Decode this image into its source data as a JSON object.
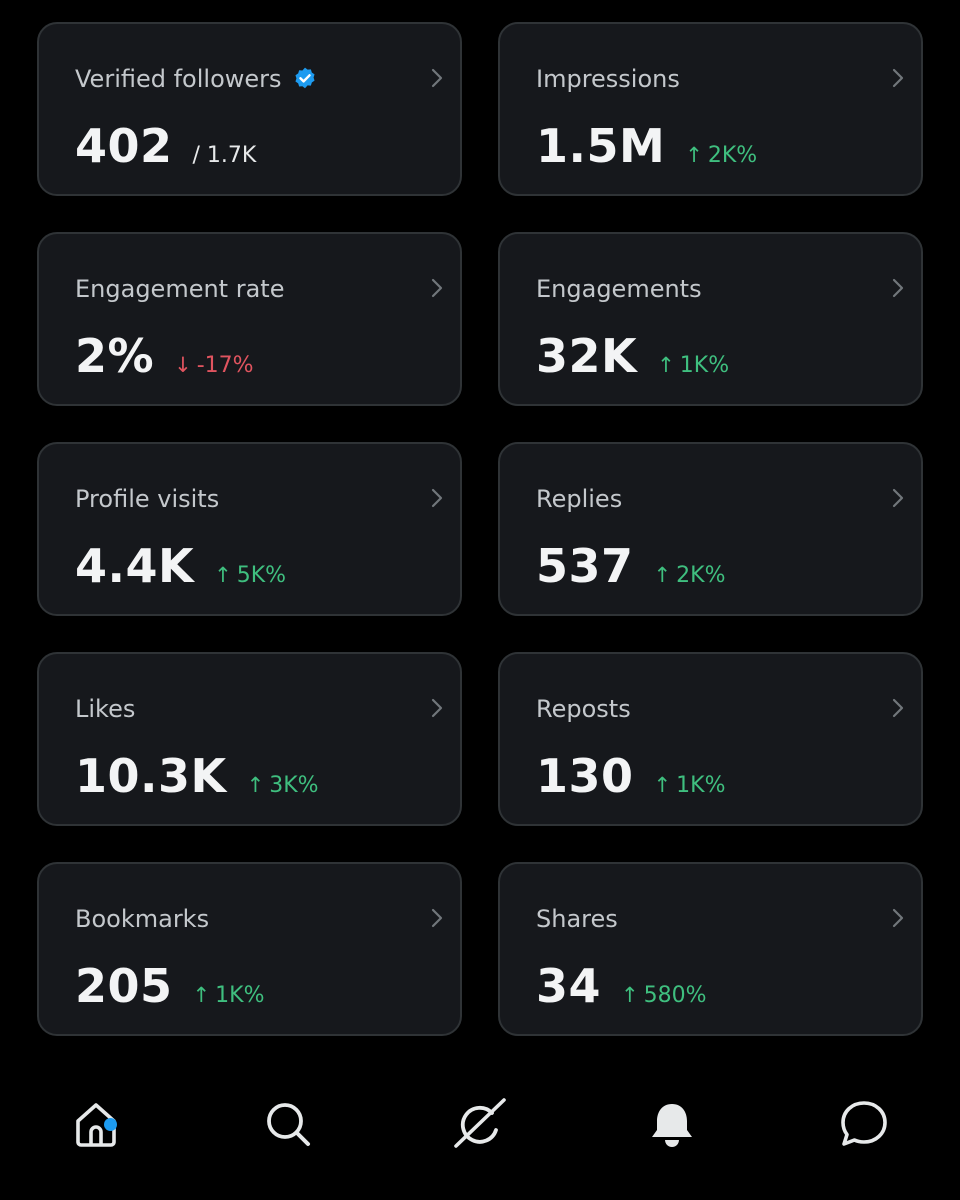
{
  "metrics": [
    {
      "label": "Verified followers",
      "value": "402",
      "total": "/ 1.7K",
      "verified_icon": "verified-badge-icon"
    },
    {
      "label": "Impressions",
      "value": "1.5M",
      "change": "2K%",
      "direction": "up"
    },
    {
      "label": "Engagement rate",
      "value": "2%",
      "change": "-17%",
      "direction": "down"
    },
    {
      "label": "Engagements",
      "value": "32K",
      "change": "1K%",
      "direction": "up"
    },
    {
      "label": "Profile visits",
      "value": "4.4K",
      "change": "5K%",
      "direction": "up"
    },
    {
      "label": "Replies",
      "value": "537",
      "change": "2K%",
      "direction": "up"
    },
    {
      "label": "Likes",
      "value": "10.3K",
      "change": "3K%",
      "direction": "up"
    },
    {
      "label": "Reposts",
      "value": "130",
      "change": "1K%",
      "direction": "up"
    },
    {
      "label": "Bookmarks",
      "value": "205",
      "change": "1K%",
      "direction": "up"
    },
    {
      "label": "Shares",
      "value": "34",
      "change": "580%",
      "direction": "up"
    }
  ],
  "arrows": {
    "up": "↑",
    "down": "↓"
  },
  "colors": {
    "background": "#000000",
    "card": "#16181c",
    "card_border": "#2f3336",
    "positive": "#3fbf7f",
    "negative": "#e0545f",
    "accent": "#1d9bf0"
  },
  "nav": [
    {
      "name": "home",
      "icon": "home-icon",
      "notification_dot": true
    },
    {
      "name": "search",
      "icon": "search-icon"
    },
    {
      "name": "grok",
      "icon": "grok-icon"
    },
    {
      "name": "notifications",
      "icon": "bell-icon"
    },
    {
      "name": "messages",
      "icon": "message-icon"
    }
  ]
}
